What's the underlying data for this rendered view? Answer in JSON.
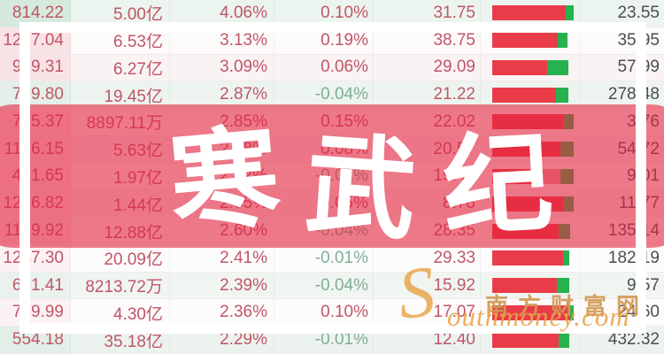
{
  "overlay": {
    "title": "寒武纪",
    "chars": [
      "寒",
      "武",
      "纪"
    ]
  },
  "watermark": {
    "initial": "S",
    "site_cn": "南方财富网",
    "site_en": "outhmoney.com"
  },
  "colors": {
    "text-red": "#c05666",
    "text-green": "#7fae96",
    "text-dark": "#4c4c55",
    "bar-red": "#ea3b48",
    "bar-mid": "#f09aa0",
    "bar-green": "#27b24e",
    "overlay-pink": "rgba(228,36,64,0.60)",
    "frame-white": "#ffffff",
    "wm-orange": "#eaa64c",
    "wm-tan": "#d29a55"
  },
  "table": {
    "rows": [
      {
        "price": "814.22",
        "turnover": "5.00亿",
        "change1": "4.06%",
        "change2": "0.10%",
        "value1": "31.75",
        "bar": {
          "red": 0.9,
          "mid": 0,
          "green": 0.1
        },
        "value2": "23.55",
        "row_bg": "#ecf4ef",
        "c1_bg": "#d5e9dd"
      },
      {
        "price": "1217.04",
        "turnover": "6.53亿",
        "change1": "3.13%",
        "change2": "0.19%",
        "value1": "38.75",
        "bar": {
          "red": 0.8,
          "mid": 0,
          "green": 0.12
        },
        "value2": "35.95",
        "row_bg": "#fdfafa",
        "c1_bg": "#f8e2e6"
      },
      {
        "price": "959.31",
        "turnover": "6.27亿",
        "change1": "3.09%",
        "change2": "0.06%",
        "value1": "29.09",
        "bar": {
          "red": 0.67,
          "mid": 0,
          "green": 0.26
        },
        "value2": "57.99",
        "row_bg": "#faf3f4",
        "c1_bg": "#f8e2e6"
      },
      {
        "price": "759.80",
        "turnover": "19.45亿",
        "change1": "2.87%",
        "change2": "-0.04%",
        "value1": "21.22",
        "bar": {
          "red": 0.78,
          "mid": 0,
          "green": 0.16
        },
        "value2": "278.48",
        "row_bg": "#edf4ef",
        "c1_bg": "#e3efe8"
      },
      {
        "price": "745.37",
        "turnover": "8897.11万",
        "change1": "2.85%",
        "change2": "0.15%",
        "value1": "22.02",
        "bar": {
          "red": 0.87,
          "mid": 0,
          "green": 0.13
        },
        "value2": "3.76",
        "row_bg": "#fbf5f5",
        "c1_bg": "#f8e2e6"
      },
      {
        "price": "1156.15",
        "turnover": "5.63亿",
        "change1": "2.78%",
        "change2": "0.08%",
        "value1": "20.57",
        "bar": {
          "red": 0.84,
          "mid": 0,
          "green": 0.16
        },
        "value2": "54.72",
        "row_bg": "#f8f1f2",
        "c1_bg": "#f8e2e6"
      },
      {
        "price": "421.65",
        "turnover": "1.97亿",
        "change1": "2.72%",
        "change2": "-0.02%",
        "value1": "19.42",
        "bar": {
          "red": 0.62,
          "mid": 0.22,
          "green": 0.16
        },
        "value2": "9.01",
        "row_bg": "#fbf6f6",
        "c1_bg": "#f8e2e6"
      },
      {
        "price": "1256.82",
        "turnover": "1.44亿",
        "change1": "2.65%",
        "change2": "0.05%",
        "value1": "8.78",
        "bar": {
          "red": 0.87,
          "mid": 0,
          "green": 0.13
        },
        "value2": "11.77",
        "row_bg": "#f7f0f1",
        "c1_bg": "#f8e2e6"
      },
      {
        "price": "1179.92",
        "turnover": "12.88亿",
        "change1": "2.60%",
        "change2": "-0.04%",
        "value1": "28.35",
        "bar": {
          "red": 0.82,
          "mid": 0,
          "green": 0.14
        },
        "value2": "135.14",
        "row_bg": "#fbf6f6",
        "c1_bg": "#f8e2e6"
      },
      {
        "price": "1247.30",
        "turnover": "20.09亿",
        "change1": "2.41%",
        "change2": "-0.01%",
        "value1": "29.33",
        "bar": {
          "red": 0.87,
          "mid": 0,
          "green": 0.08
        },
        "value2": "182.19",
        "row_bg": "#fdfcfc",
        "c1_bg": "#fcf2f4"
      },
      {
        "price": "651.41",
        "turnover": "8213.72万",
        "change1": "2.39%",
        "change2": "-0.04%",
        "value1": "15.92",
        "bar": {
          "red": 0.79,
          "mid": 0,
          "green": 0.16
        },
        "value2": "9.57",
        "row_bg": "#f0f5f1",
        "c1_bg": "#e9f2ec"
      },
      {
        "price": "759.99",
        "turnover": "4.30亿",
        "change1": "2.36%",
        "change2": "0.10%",
        "value1": "17.07",
        "bar": {
          "red": 0.96,
          "mid": 0,
          "green": 0.04
        },
        "value2": "24.60",
        "row_bg": "#fdfbfb",
        "c1_bg": "#fcf2f4"
      },
      {
        "price": "554.18",
        "turnover": "35.18亿",
        "change1": "2.29%",
        "change2": "-0.01%",
        "value1": "12.40",
        "bar": {
          "red": 0.82,
          "mid": 0,
          "green": 0.13
        },
        "value2": "432.32",
        "row_bg": "#ecf3ee",
        "c1_bg": "#e2eee7"
      }
    ]
  }
}
